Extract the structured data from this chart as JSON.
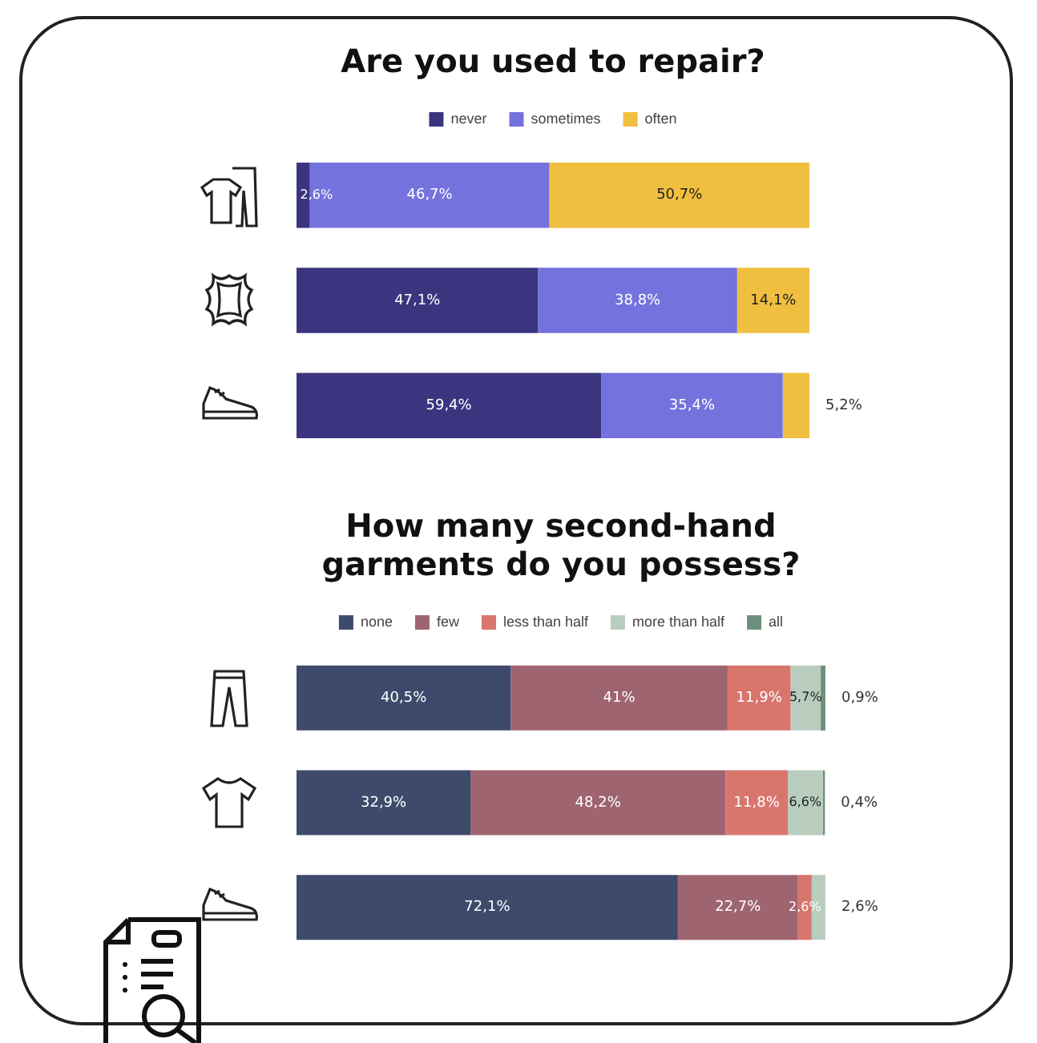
{
  "chart_data": [
    {
      "type": "bar",
      "title": "Are you used to repair?",
      "orientation": "horizontal",
      "stacked": true,
      "legend": "top",
      "categories": [
        null,
        null,
        null
      ],
      "series": [
        {
          "name": "never",
          "color": "#3b3580",
          "values": [
            2.6,
            47.1,
            59.4
          ],
          "value_labels": [
            "2,6%",
            "47,1%",
            "59,4%"
          ]
        },
        {
          "name": "sometimes",
          "color": "#7472dd",
          "values": [
            46.7,
            38.8,
            35.4
          ],
          "value_labels": [
            "46,7%",
            "38,8%",
            "35,4%"
          ]
        },
        {
          "name": "often",
          "color": "#f1bf3f",
          "values": [
            50.7,
            14.1,
            5.2
          ],
          "value_labels": [
            "50,7%",
            "14,1%",
            "5,2%"
          ]
        }
      ]
    },
    {
      "type": "bar",
      "title": "How many second-hand garments do you possess?",
      "orientation": "horizontal",
      "stacked": true,
      "legend": "top",
      "categories": [
        null,
        null,
        null
      ],
      "series": [
        {
          "name": "none",
          "color": "#3d4a6b",
          "values": [
            40.5,
            32.9,
            72.1
          ],
          "value_labels": [
            "40,5%",
            "32,9%",
            "72,1%"
          ]
        },
        {
          "name": "few",
          "color": "#9e6470",
          "values": [
            41,
            48.2,
            22.7
          ],
          "value_labels": [
            "41%",
            "48,2%",
            "22,7%"
          ]
        },
        {
          "name": "less than half",
          "color": "#d8756d",
          "values": [
            11.9,
            11.8,
            2.6
          ],
          "value_labels": [
            "11,9%",
            "11,8%",
            "2,6%"
          ]
        },
        {
          "name": "more than half",
          "color": "#b9cdbe",
          "values": [
            5.7,
            6.6,
            2.6
          ],
          "value_labels": [
            "5,7%",
            "6,6%",
            "2,6%"
          ]
        },
        {
          "name": "all",
          "color": "#6f8f7e",
          "values": [
            0.9,
            0.4,
            null
          ],
          "value_labels": [
            "0,9%",
            "0,4%",
            null
          ]
        }
      ]
    }
  ]
}
